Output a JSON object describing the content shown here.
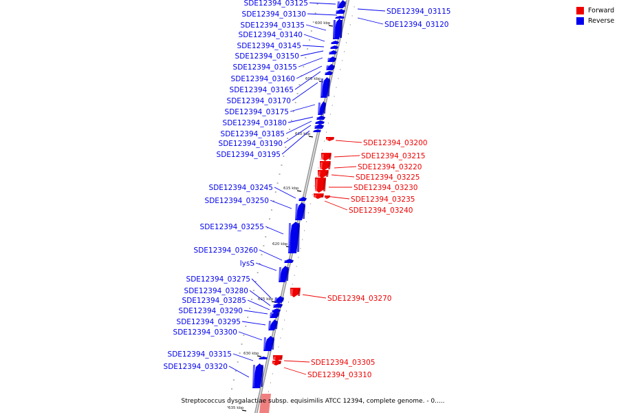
{
  "legend": {
    "items": [
      {
        "label": "Forward",
        "color": "#ee0000"
      },
      {
        "label": "Reverse",
        "color": "#0000ee"
      }
    ]
  },
  "caption": "Streptococcus dysgalactiae subsp. equisimilis ATCC 12394, complete genome. - 0.....",
  "backbone_ticks": [
    "600 kbp",
    "605 kbp",
    "610 kbp",
    "615 kbp",
    "620 kbp",
    "625 kbp",
    "630 kbp",
    "635 kbp"
  ],
  "genes": [
    {
      "name": "SDE12394_03115",
      "strand": "reverse"
    },
    {
      "name": "SDE12394_03120",
      "strand": "reverse"
    },
    {
      "name": "SDE12394_03125",
      "strand": "reverse"
    },
    {
      "name": "SDE12394_03130",
      "strand": "reverse"
    },
    {
      "name": "SDE12394_03135",
      "strand": "reverse"
    },
    {
      "name": "SDE12394_03140",
      "strand": "reverse"
    },
    {
      "name": "SDE12394_03145",
      "strand": "reverse"
    },
    {
      "name": "SDE12394_03150",
      "strand": "reverse"
    },
    {
      "name": "SDE12394_03155",
      "strand": "reverse"
    },
    {
      "name": "SDE12394_03160",
      "strand": "reverse"
    },
    {
      "name": "SDE12394_03165",
      "strand": "reverse"
    },
    {
      "name": "SDE12394_03170",
      "strand": "reverse"
    },
    {
      "name": "SDE12394_03175",
      "strand": "reverse"
    },
    {
      "name": "SDE12394_03180",
      "strand": "reverse"
    },
    {
      "name": "SDE12394_03185",
      "strand": "reverse"
    },
    {
      "name": "SDE12394_03190",
      "strand": "reverse"
    },
    {
      "name": "SDE12394_03195",
      "strand": "reverse"
    },
    {
      "name": "SDE12394_03200",
      "strand": "forward"
    },
    {
      "name": "SDE12394_03215",
      "strand": "forward"
    },
    {
      "name": "SDE12394_03220",
      "strand": "forward"
    },
    {
      "name": "SDE12394_03225",
      "strand": "forward"
    },
    {
      "name": "SDE12394_03230",
      "strand": "forward"
    },
    {
      "name": "SDE12394_03235",
      "strand": "forward"
    },
    {
      "name": "SDE12394_03240",
      "strand": "forward"
    },
    {
      "name": "SDE12394_03245",
      "strand": "reverse"
    },
    {
      "name": "SDE12394_03250",
      "strand": "reverse"
    },
    {
      "name": "SDE12394_03255",
      "strand": "reverse"
    },
    {
      "name": "SDE12394_03260",
      "strand": "reverse"
    },
    {
      "name": "lysS",
      "strand": "reverse"
    },
    {
      "name": "SDE12394_03270",
      "strand": "forward"
    },
    {
      "name": "SDE12394_03275",
      "strand": "reverse"
    },
    {
      "name": "SDE12394_03280",
      "strand": "reverse"
    },
    {
      "name": "SDE12394_03285",
      "strand": "reverse"
    },
    {
      "name": "SDE12394_03290",
      "strand": "reverse"
    },
    {
      "name": "SDE12394_03295",
      "strand": "reverse"
    },
    {
      "name": "SDE12394_03300",
      "strand": "reverse"
    },
    {
      "name": "SDE12394_03305",
      "strand": "forward"
    },
    {
      "name": "SDE12394_03310",
      "strand": "forward"
    },
    {
      "name": "SDE12394_03315",
      "strand": "reverse"
    },
    {
      "name": "SDE12394_03320",
      "strand": "reverse"
    }
  ]
}
